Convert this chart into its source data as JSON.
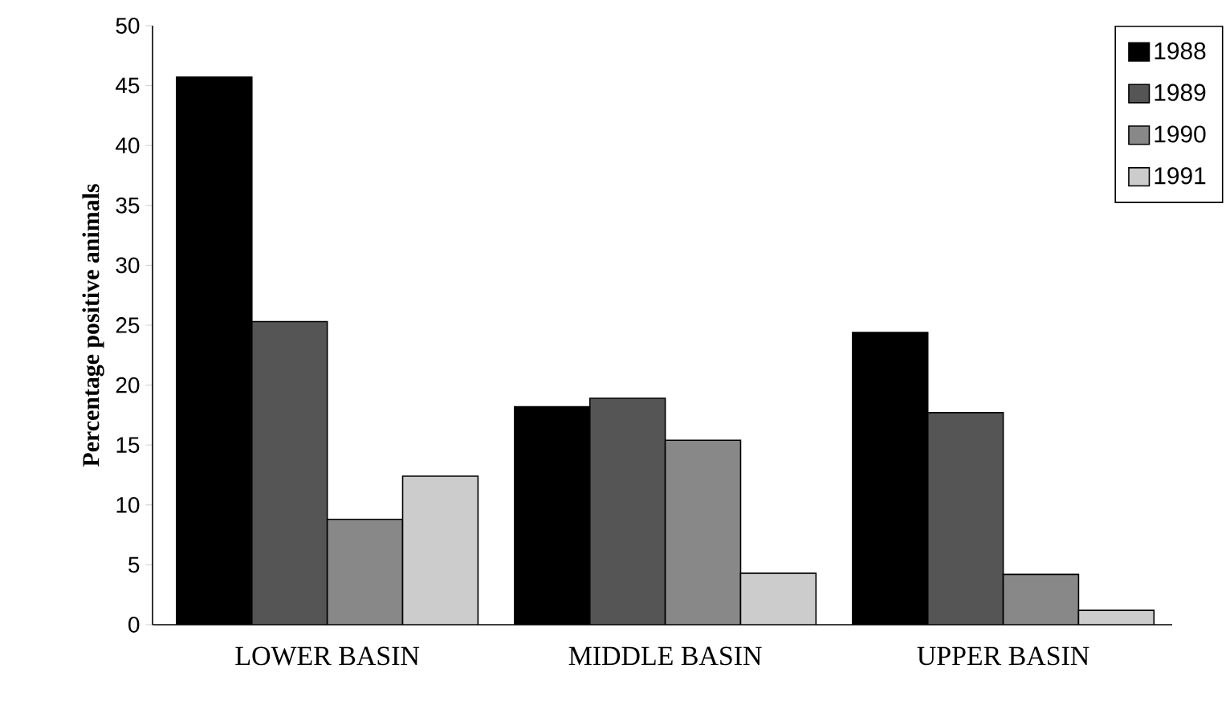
{
  "chart_data": {
    "type": "bar",
    "ylabel": "Percentage positive animals",
    "categories": [
      "LOWER BASIN",
      "MIDDLE BASIN",
      "UPPER BASIN"
    ],
    "series": [
      {
        "name": "1988",
        "color": "#000000",
        "values": [
          45.7,
          18.2,
          24.4
        ]
      },
      {
        "name": "1989",
        "color": "#555555",
        "values": [
          25.3,
          18.9,
          17.7
        ]
      },
      {
        "name": "1990",
        "color": "#888888",
        "values": [
          8.8,
          15.4,
          4.2
        ]
      },
      {
        "name": "1991",
        "color": "#cccccc",
        "values": [
          12.4,
          4.3,
          1.2
        ]
      }
    ],
    "ylim": [
      0,
      50
    ],
    "yticks": [
      0,
      5,
      10,
      15,
      20,
      25,
      30,
      35,
      40,
      45,
      50
    ],
    "grid": false,
    "legend": "top right"
  }
}
